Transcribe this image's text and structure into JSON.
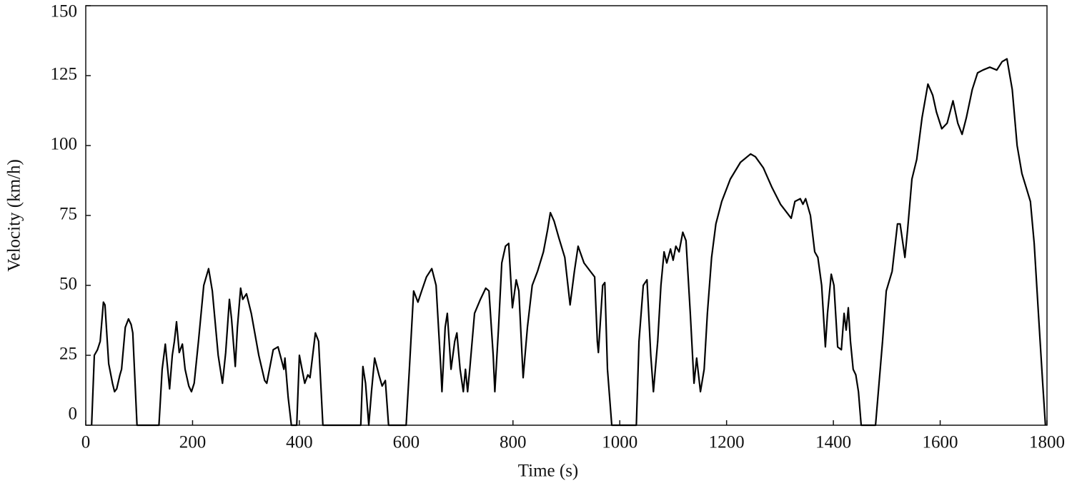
{
  "chart_data": {
    "type": "line",
    "x_label": "Time (s)",
    "y_label": "Velocity (km/h)",
    "xlim": [
      0,
      1800
    ],
    "ylim": [
      0,
      150
    ],
    "xticks": [
      0,
      200,
      400,
      600,
      800,
      1000,
      1200,
      1400,
      1600,
      1800
    ],
    "yticks": [
      0,
      25,
      50,
      75,
      100,
      125,
      150
    ],
    "grid": false,
    "series": [
      {
        "color": "#000000",
        "x": [
          11,
          16,
          22,
          27,
          33,
          36,
          43,
          50,
          54,
          58,
          64,
          67,
          74,
          80,
          85,
          88,
          96,
          137,
          143,
          149,
          157,
          162,
          166,
          170,
          175,
          181,
          186,
          193,
          198,
          203,
          211,
          221,
          230,
          237,
          248,
          256,
          262,
          269,
          273,
          280,
          284,
          290,
          294,
          301,
          310,
          324,
          335,
          339,
          351,
          360,
          367,
          371,
          373,
          379,
          385,
          395,
          400,
          410,
          416,
          420,
          430,
          436,
          444,
          515,
          519,
          524,
          530,
          535,
          541,
          549,
          555,
          561,
          567,
          600,
          606,
          614,
          622,
          629,
          638,
          648,
          656,
          665,
          667,
          673,
          677,
          684,
          691,
          695,
          701,
          707,
          711,
          715,
          719,
          728,
          739,
          749,
          755,
          763,
          766,
          773,
          779,
          786,
          792,
          799,
          806,
          811,
          819,
          827,
          836,
          846,
          857,
          865,
          870,
          877,
          886,
          897,
          907,
          915,
          922,
          933,
          945,
          953,
          958,
          960,
          968,
          972,
          977,
          985,
          1031,
          1036,
          1044,
          1051,
          1058,
          1063,
          1071,
          1077,
          1083,
          1088,
          1095,
          1100,
          1105,
          1111,
          1118,
          1124,
          1132,
          1139,
          1144,
          1151,
          1158,
          1164,
          1172,
          1180,
          1191,
          1207,
          1226,
          1245,
          1254,
          1269,
          1285,
          1301,
          1313,
          1321,
          1328,
          1338,
          1343,
          1348,
          1357,
          1365,
          1371,
          1378,
          1385,
          1389,
          1396,
          1401,
          1408,
          1415,
          1420,
          1424,
          1428,
          1432,
          1437,
          1442,
          1447,
          1452,
          1479,
          1492,
          1499,
          1510,
          1520,
          1525,
          1534,
          1539,
          1547,
          1556,
          1566,
          1577,
          1586,
          1593,
          1603,
          1613,
          1624,
          1633,
          1641,
          1649,
          1660,
          1670,
          1680,
          1693,
          1706,
          1716,
          1725,
          1735,
          1744,
          1753,
          1761,
          1769,
          1776,
          1784,
          1792,
          1797
        ],
        "values": [
          0,
          25,
          27,
          30,
          44,
          43,
          22,
          15,
          12,
          13,
          18,
          20,
          35,
          38,
          36,
          33,
          0,
          0,
          20,
          29,
          13,
          25,
          30,
          37,
          26,
          29,
          20,
          14,
          12,
          15,
          30,
          50,
          56,
          48,
          25,
          15,
          26,
          45,
          38,
          21,
          35,
          49,
          45,
          47,
          40,
          25,
          16,
          15,
          27,
          28,
          23,
          20,
          24,
          10,
          0,
          0,
          25,
          15,
          18,
          17,
          33,
          30,
          0,
          0,
          21,
          15,
          0,
          12,
          24,
          18,
          14,
          16,
          0,
          0,
          20,
          48,
          44,
          48,
          53,
          56,
          50,
          20,
          12,
          35,
          40,
          20,
          30,
          33,
          20,
          12,
          20,
          12,
          20,
          40,
          45,
          49,
          48,
          25,
          12,
          35,
          58,
          64,
          65,
          42,
          52,
          48,
          17,
          35,
          50,
          55,
          62,
          70,
          76,
          73,
          67,
          60,
          43,
          55,
          64,
          58,
          55,
          53,
          30,
          26,
          50,
          51,
          20,
          0,
          0,
          30,
          50,
          52,
          25,
          12,
          30,
          50,
          62,
          58,
          63,
          59,
          64,
          62,
          69,
          66,
          40,
          15,
          24,
          12,
          20,
          40,
          60,
          72,
          80,
          88,
          94,
          97,
          96,
          92,
          85,
          79,
          76,
          74,
          80,
          81,
          79,
          81,
          75,
          62,
          60,
          50,
          28,
          40,
          54,
          50,
          28,
          27,
          40,
          34,
          42,
          30,
          20,
          18,
          12,
          0,
          0,
          30,
          48,
          55,
          72,
          72,
          60,
          70,
          88,
          95,
          110,
          122,
          118,
          112,
          106,
          108,
          116,
          108,
          104,
          110,
          120,
          126,
          127,
          128,
          127,
          130,
          131,
          120,
          100,
          90,
          85,
          80,
          65,
          40,
          15,
          0
        ]
      }
    ]
  }
}
